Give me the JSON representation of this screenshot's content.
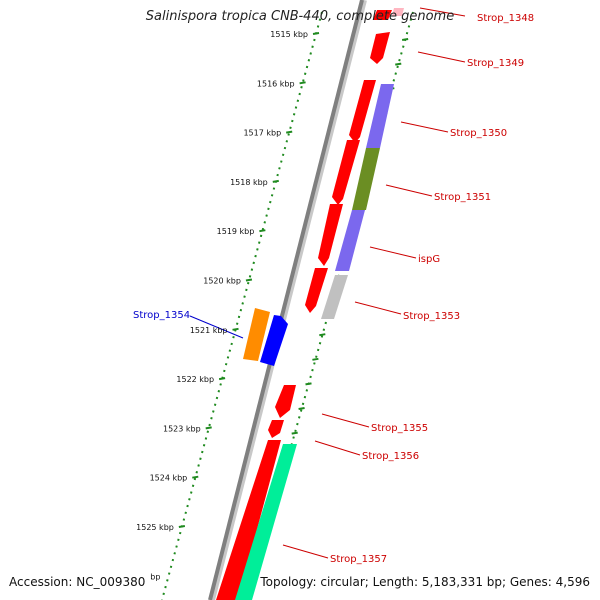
{
  "title": "Salinispora tropica CNB-440, complete genome",
  "footer": {
    "accession": "Accession: NC_009380",
    "summary": "Topology: circular; Length: 5,183,331 bp; Genes: 4,596"
  },
  "colors": {
    "backbone": "#8a8a8a",
    "ticks": "#1f8a1f",
    "label_red": "#cc0000",
    "label_blue": "#0000cc",
    "cds_red": "#ff0000",
    "cds_blue": "#0000ff",
    "cds_orange": "#ff8c00",
    "cds_purple": "#7b68ee",
    "cds_olive": "#6b8e23",
    "cds_gray": "#c0c0c0",
    "cds_green": "#00ee99",
    "cds_pink": "#ffb6c1"
  },
  "ruler": {
    "unit": "kbp",
    "ticks": [
      "1515",
      "1516",
      "1517",
      "1518",
      "1519",
      "1520",
      "1521",
      "1522",
      "1523",
      "1524",
      "1525"
    ],
    "partial_last": "bp"
  },
  "gene_labels": [
    {
      "text": "Strop_1348",
      "color": "red"
    },
    {
      "text": "Strop_1349",
      "color": "red"
    },
    {
      "text": "Strop_1350",
      "color": "red"
    },
    {
      "text": "Strop_1351",
      "color": "red"
    },
    {
      "text": "ispG",
      "color": "red"
    },
    {
      "text": "Strop_1353",
      "color": "red"
    },
    {
      "text": "Strop_1354",
      "color": "blue"
    },
    {
      "text": "Strop_1355",
      "color": "red"
    },
    {
      "text": "Strop_1356",
      "color": "red"
    },
    {
      "text": "Strop_1357",
      "color": "red"
    }
  ]
}
